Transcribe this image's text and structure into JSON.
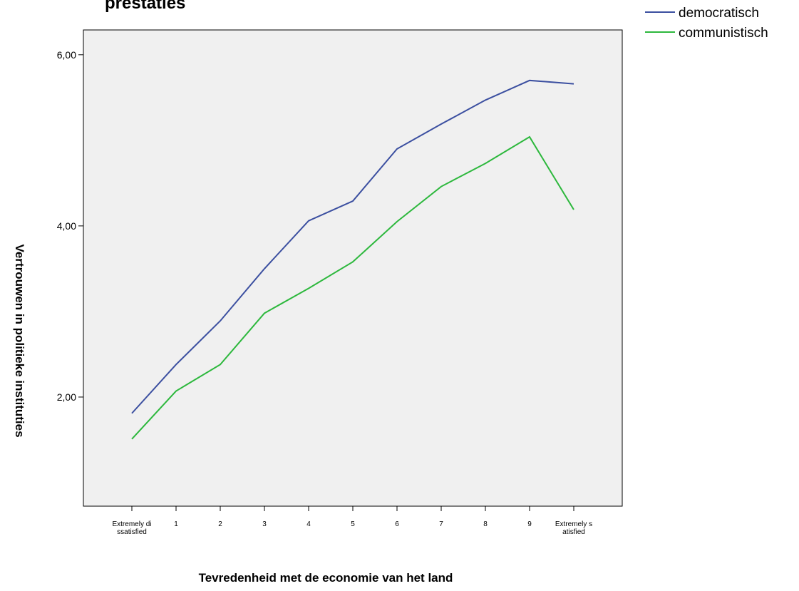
{
  "chart_data": {
    "type": "line",
    "title": "prestaties",
    "x_label": "Tevredenheid met de economie van het land",
    "y_label": "Vertrouwen in politieke instituties",
    "categories": [
      "Extremely dissatisfied",
      "1",
      "2",
      "3",
      "4",
      "5",
      "6",
      "7",
      "8",
      "9",
      "Extremely satisfied"
    ],
    "series": [
      {
        "name": "democratisch",
        "color": "#3b4fa0",
        "values": [
          1.81,
          2.38,
          2.89,
          3.5,
          4.06,
          4.29,
          4.9,
          5.19,
          5.47,
          5.7,
          5.66
        ]
      },
      {
        "name": "communistisch",
        "color": "#2db83d",
        "values": [
          1.51,
          2.07,
          2.38,
          2.98,
          3.27,
          3.58,
          4.05,
          4.46,
          4.73,
          5.04,
          4.19
        ]
      }
    ],
    "ylim": [
      0.725,
      6.29
    ],
    "yticks": [
      {
        "value": 2,
        "label": "2,00"
      },
      {
        "value": 4,
        "label": "4,00"
      },
      {
        "value": 6,
        "label": "6,00"
      }
    ],
    "background": "#f0f0f0",
    "legend": "top-right"
  }
}
